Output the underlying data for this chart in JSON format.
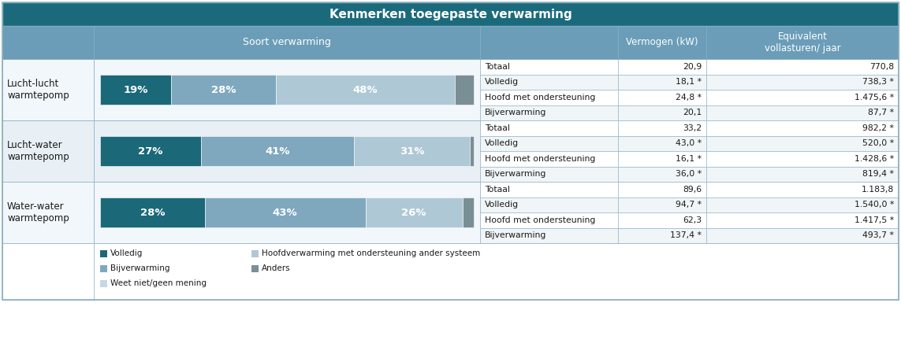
{
  "title": "Kenmerken toegepaste verwarming",
  "title_bg": "#1b6a7b",
  "header_bg": "#6b9db8",
  "border_color": "#8aaec4",
  "col2_header": "Soort verwarming",
  "col3_header": "Vermogen (kW)",
  "col4_header": "Equivalent\nvollasturen/ jaar",
  "rows": [
    {
      "label": "Lucht-lucht\nwarmtepomp",
      "bar_segments": [
        19,
        28,
        48,
        5
      ],
      "bar_labels": [
        "19%",
        "28%",
        "48%",
        ""
      ],
      "sub_rows": [
        {
          "name": "Totaal",
          "vermogen": "20,9",
          "equivalent": "770,8"
        },
        {
          "name": "Volledig",
          "vermogen": "18,1 *",
          "equivalent": "738,3 *"
        },
        {
          "name": "Hoofd met ondersteuning",
          "vermogen": "24,8 *",
          "equivalent": "1.475,6 *"
        },
        {
          "name": "Bijverwarming",
          "vermogen": "20,1",
          "equivalent": "87,7 *"
        }
      ]
    },
    {
      "label": "Lucht-water\nwarmtepomp",
      "bar_segments": [
        27,
        41,
        31,
        1
      ],
      "bar_labels": [
        "27%",
        "41%",
        "31%",
        ""
      ],
      "sub_rows": [
        {
          "name": "Totaal",
          "vermogen": "33,2",
          "equivalent": "982,2 *"
        },
        {
          "name": "Volledig",
          "vermogen": "43,0 *",
          "equivalent": "520,0 *"
        },
        {
          "name": "Hoofd met ondersteuning",
          "vermogen": "16,1 *",
          "equivalent": "1.428,6 *"
        },
        {
          "name": "Bijverwarming",
          "vermogen": "36,0 *",
          "equivalent": "819,4 *"
        }
      ]
    },
    {
      "label": "Water-water\nwarmtepomp",
      "bar_segments": [
        28,
        43,
        26,
        3
      ],
      "bar_labels": [
        "28%",
        "43%",
        "26%",
        ""
      ],
      "sub_rows": [
        {
          "name": "Totaal",
          "vermogen": "89,6",
          "equivalent": "1.183,8"
        },
        {
          "name": "Volledig",
          "vermogen": "94,7 *",
          "equivalent": "1.540,0 *"
        },
        {
          "name": "Hoofd met ondersteuning",
          "vermogen": "62,3",
          "equivalent": "1.417,5 *"
        },
        {
          "name": "Bijverwarming",
          "vermogen": "137,4 *",
          "equivalent": "493,7 *"
        }
      ]
    }
  ],
  "bar_colors": [
    "#1b6879",
    "#7fa8bf",
    "#afc8d5",
    "#7a8e96"
  ],
  "row_bg": [
    "#f2f7fb",
    "#e8f0f5"
  ],
  "sub_row_bg": [
    "#ffffff",
    "#f0f5f8"
  ],
  "legend_items_left": [
    {
      "label": "Volledig",
      "color": "#1b6879"
    },
    {
      "label": "Bijverwarming",
      "color": "#7fa8bf"
    },
    {
      "label": "Weet niet/geen mening",
      "color": "#c5d8e3"
    }
  ],
  "legend_items_right": [
    {
      "label": "Hoofdverwarming met ondersteuning ander systeem",
      "color": "#afc8d5"
    },
    {
      "label": "Anders",
      "color": "#7a8e96"
    }
  ]
}
